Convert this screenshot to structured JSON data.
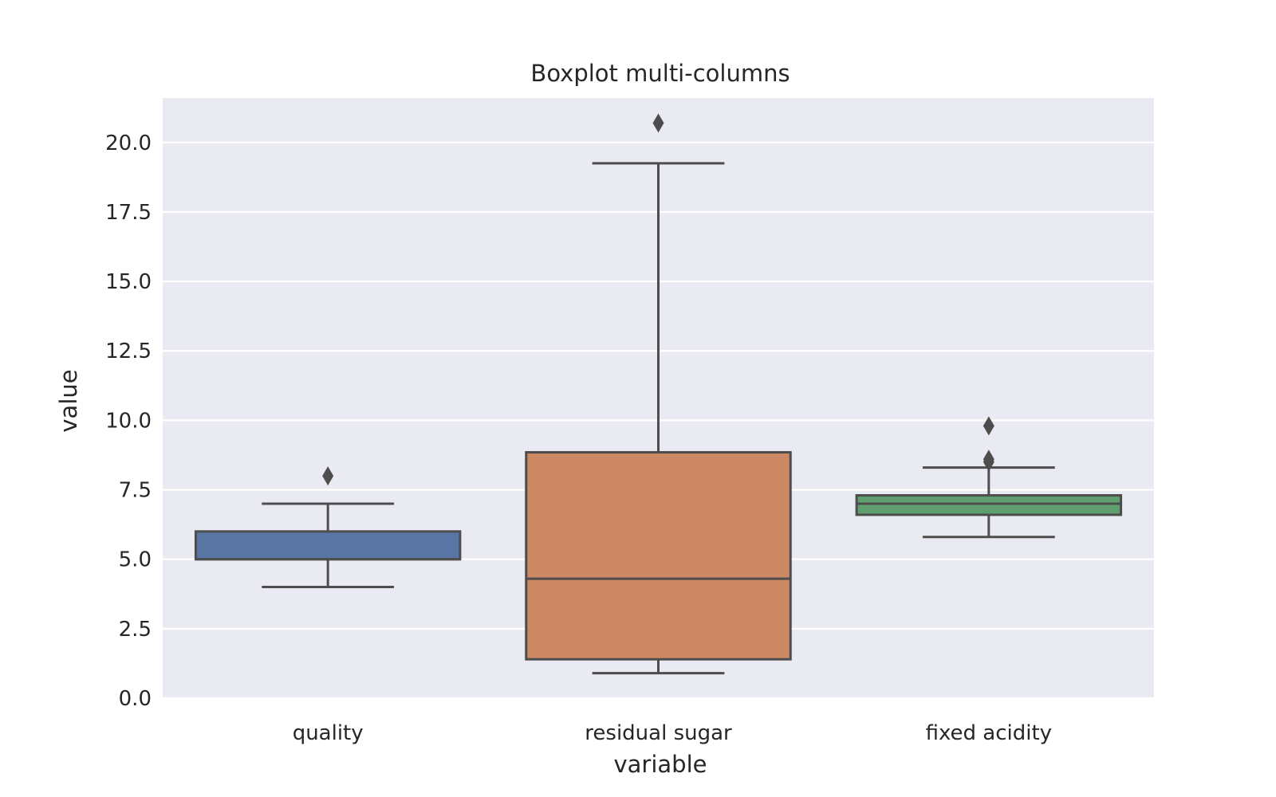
{
  "chart_data": {
    "type": "box",
    "title": "Boxplot multi-columns",
    "xlabel": "variable",
    "ylabel": "value",
    "ylim": [
      0,
      21.6
    ],
    "yticks": [
      0.0,
      2.5,
      5.0,
      7.5,
      10.0,
      12.5,
      15.0,
      17.5,
      20.0
    ],
    "ytick_labels": [
      "0.0",
      "2.5",
      "5.0",
      "7.5",
      "10.0",
      "12.5",
      "15.0",
      "17.5",
      "20.0"
    ],
    "grid": true,
    "background": "#eaeaf2",
    "line_color": "#4d4d4d",
    "categories": [
      "quality",
      "residual sugar",
      "fixed acidity"
    ],
    "boxes": [
      {
        "category": "quality",
        "color": "#5875a4",
        "whisker_low": 4.0,
        "q1": 5.0,
        "median": 5.0,
        "q3": 6.0,
        "whisker_high": 7.0,
        "outliers": [
          8.0
        ]
      },
      {
        "category": "residual sugar",
        "color": "#cc8963",
        "whisker_low": 0.9,
        "q1": 1.4,
        "median": 4.3,
        "q3": 8.85,
        "whisker_high": 19.25,
        "outliers": [
          20.7
        ]
      },
      {
        "category": "fixed acidity",
        "color": "#5f9e6e",
        "whisker_low": 5.8,
        "q1": 6.6,
        "median": 7.0,
        "q3": 7.3,
        "whisker_high": 8.3,
        "outliers": [
          8.5,
          8.6,
          9.8
        ]
      }
    ]
  }
}
